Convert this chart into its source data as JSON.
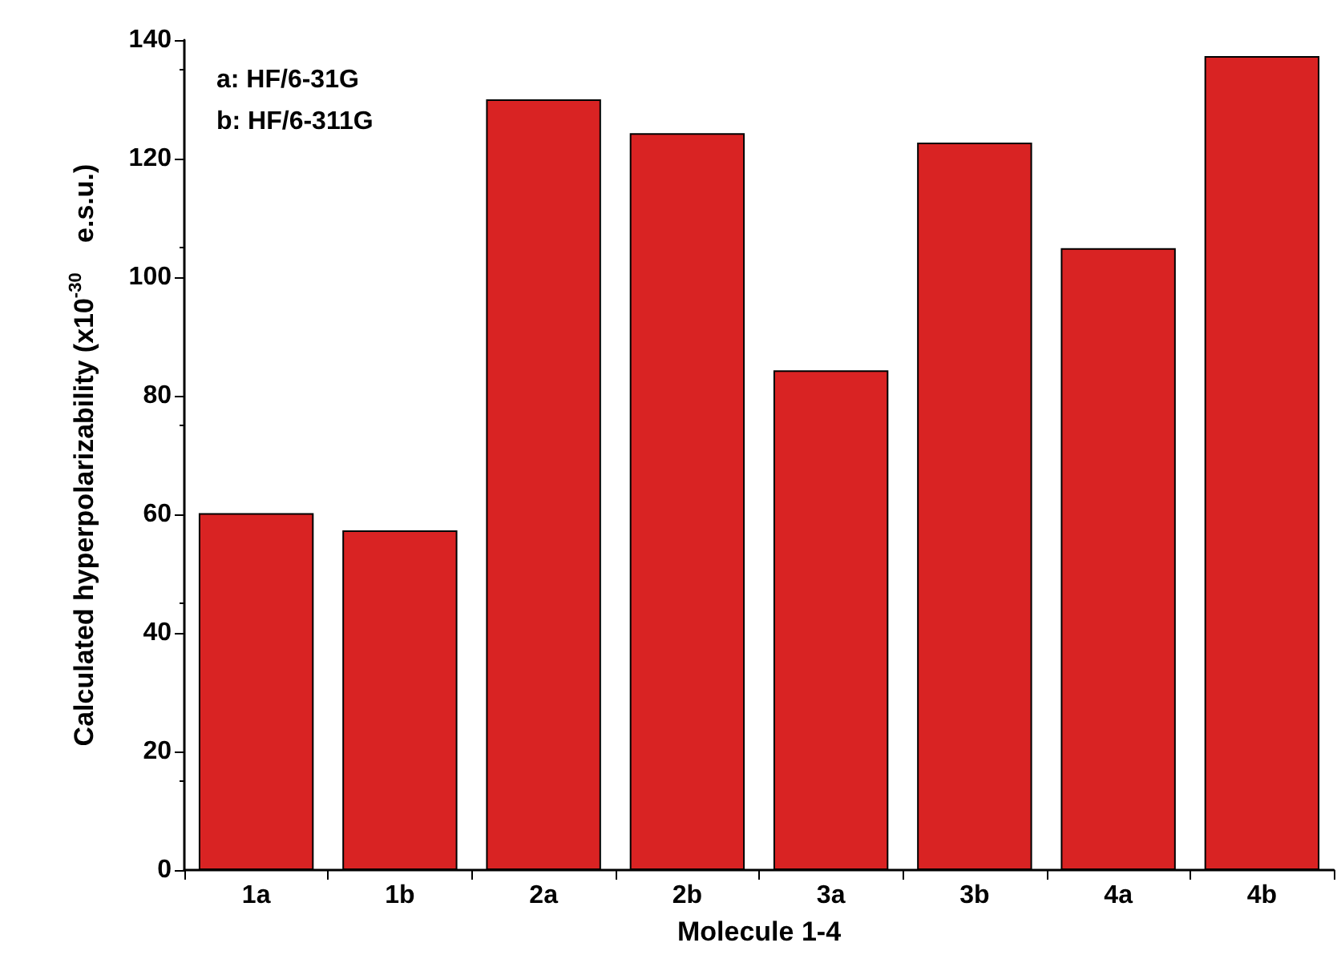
{
  "chart_data": {
    "type": "bar",
    "xlabel": "Molecule 1-4",
    "ylabel": "Calculated hyperpolarizability (x10$^{-30}$ e.s.u.)",
    "categories": [
      "1a",
      "1b",
      "2a",
      "2b",
      "3a",
      "3b",
      "4a",
      "4b"
    ],
    "values": [
      60.2,
      57.3,
      130,
      124.3,
      84.3,
      122.7,
      104.9,
      137.3
    ],
    "color": "#d92323",
    "ylim": [
      0,
      140
    ],
    "yticks": [
      0,
      20,
      40,
      60,
      80,
      100,
      120,
      140
    ],
    "grid": false,
    "annotations": [
      "a: HF/6-31G",
      "b: HF/6-311G"
    ]
  }
}
